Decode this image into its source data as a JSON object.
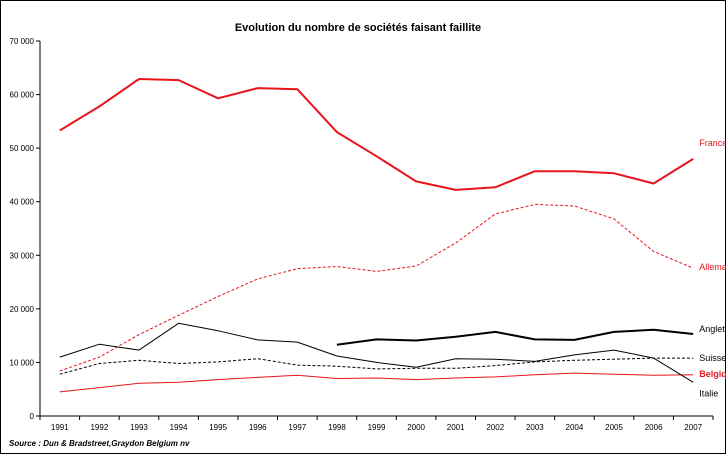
{
  "chart_data": {
    "type": "line",
    "title": "Evolution du nombre de sociétés faisant faillite",
    "source": "Source : Dun & Bradstreet,Graydon Belgium nv",
    "categories": [
      "1991",
      "1992",
      "1993",
      "1994",
      "1995",
      "1996",
      "1997",
      "1998",
      "1999",
      "2000",
      "2001",
      "2002",
      "2003",
      "2004",
      "2005",
      "2006",
      "2007"
    ],
    "ylim": [
      0,
      70000
    ],
    "yticks": [
      0,
      10000,
      20000,
      30000,
      40000,
      50000,
      60000,
      70000
    ],
    "ytick_labels": [
      "0",
      "10 000",
      "20 000",
      "30 000",
      "40 000",
      "50 000",
      "60 000",
      "70 000"
    ],
    "grid": false,
    "legend": "right, labels at line ends",
    "series": [
      {
        "name": "France",
        "color": "#e8141b",
        "style": "solid",
        "width": 2,
        "values": [
          53300,
          57800,
          62900,
          62700,
          59300,
          61200,
          61000,
          53000,
          48500,
          43800,
          42200,
          42700,
          45700,
          45700,
          45300,
          43400,
          48000
        ]
      },
      {
        "name": "Allemagne",
        "color": "#e8141b",
        "style": "dashed",
        "width": 1,
        "values": [
          8400,
          11000,
          15200,
          18800,
          22300,
          25600,
          27500,
          27900,
          27000,
          28000,
          32300,
          37700,
          39500,
          39200,
          36800,
          30700,
          27600
        ]
      },
      {
        "name": "Angleterre",
        "color": "#000000",
        "style": "solid",
        "width": 2,
        "values": [
          null,
          null,
          null,
          null,
          null,
          null,
          null,
          13300,
          14300,
          14100,
          14800,
          15700,
          14300,
          14200,
          15700,
          16100,
          15300
        ]
      },
      {
        "name": "Suisse",
        "color": "#000000",
        "style": "dashed",
        "width": 1,
        "values": [
          7800,
          9800,
          10400,
          9800,
          10100,
          10700,
          9500,
          9300,
          8800,
          8900,
          8900,
          9400,
          10100,
          10400,
          10600,
          10800,
          10800
        ]
      },
      {
        "name": "Belgique",
        "color": "#e8141b",
        "style": "solid",
        "width": 1,
        "values": [
          4500,
          5300,
          6100,
          6300,
          6800,
          7200,
          7600,
          7000,
          7100,
          6800,
          7100,
          7300,
          7700,
          8000,
          7800,
          7600,
          7700
        ]
      },
      {
        "name": "Italie",
        "color": "#000000",
        "style": "solid",
        "width": 1,
        "values": [
          11000,
          13400,
          12300,
          17300,
          15900,
          14200,
          13800,
          11200,
          10000,
          9100,
          10700,
          10600,
          10200,
          11400,
          12300,
          10800,
          6300
        ]
      }
    ]
  }
}
